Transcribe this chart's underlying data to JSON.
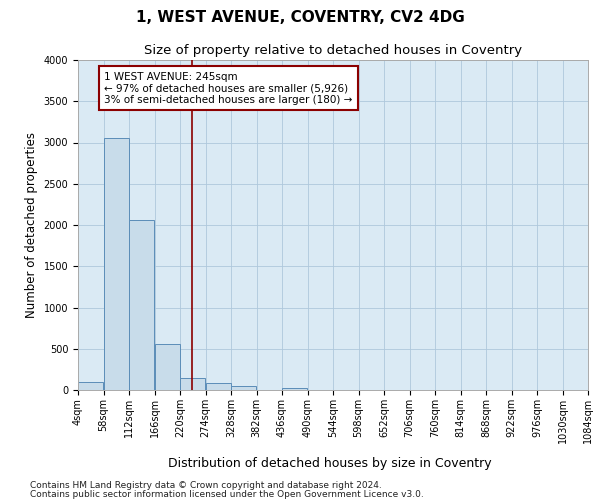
{
  "title": "1, WEST AVENUE, COVENTRY, CV2 4DG",
  "subtitle": "Size of property relative to detached houses in Coventry",
  "xlabel": "Distribution of detached houses by size in Coventry",
  "ylabel": "Number of detached properties",
  "footer_line1": "Contains HM Land Registry data © Crown copyright and database right 2024.",
  "footer_line2": "Contains public sector information licensed under the Open Government Licence v3.0.",
  "annotation_line1": "1 WEST AVENUE: 245sqm",
  "annotation_line2": "← 97% of detached houses are smaller (5,926)",
  "annotation_line3": "3% of semi-detached houses are larger (180) →",
  "property_size": 245,
  "bin_edges": [
    4,
    58,
    112,
    166,
    220,
    274,
    328,
    382,
    436,
    490,
    544,
    598,
    652,
    706,
    760,
    814,
    868,
    922,
    976,
    1030,
    1084
  ],
  "bar_heights": [
    100,
    3050,
    2060,
    560,
    150,
    80,
    45,
    5,
    30,
    5,
    0,
    0,
    0,
    0,
    0,
    0,
    0,
    0,
    0,
    0
  ],
  "bar_color": "#c8dcea",
  "bar_edge_color": "#5b8db8",
  "vline_color": "#8b0000",
  "vline_x": 245,
  "ylim": [
    0,
    4000
  ],
  "yticks": [
    0,
    500,
    1000,
    1500,
    2000,
    2500,
    3000,
    3500,
    4000
  ],
  "xtick_labels": [
    "4sqm",
    "58sqm",
    "112sqm",
    "166sqm",
    "220sqm",
    "274sqm",
    "328sqm",
    "382sqm",
    "436sqm",
    "490sqm",
    "544sqm",
    "598sqm",
    "652sqm",
    "706sqm",
    "760sqm",
    "814sqm",
    "868sqm",
    "922sqm",
    "976sqm",
    "1030sqm",
    "1084sqm"
  ],
  "grid_color": "#aec8dc",
  "plot_bg_color": "#daeaf4",
  "title_fontsize": 11,
  "subtitle_fontsize": 9.5,
  "ylabel_fontsize": 8.5,
  "xlabel_fontsize": 9,
  "tick_fontsize": 7,
  "annotation_fontsize": 7.5,
  "footer_fontsize": 6.5
}
